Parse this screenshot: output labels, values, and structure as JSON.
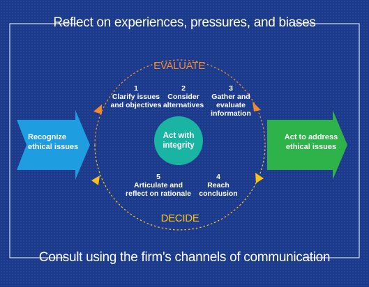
{
  "top_banner": "Reflect on experiences, pressures, and biases",
  "bottom_banner": "Consult using the firm's channels of communication",
  "cycle": {
    "evaluate_label": "EVALUATE",
    "decide_label": "DECIDE",
    "center": "Act with\nintegrity",
    "steps": [
      {
        "num": "1",
        "text": "Clarify issues\nand objectives"
      },
      {
        "num": "2",
        "text": "Consider\nalternatives"
      },
      {
        "num": "3",
        "text": "Gather and\nevaluate\ninformation"
      },
      {
        "num": "4",
        "text": "Reach\nconclusion"
      },
      {
        "num": "5",
        "text": "Articulate and\nreflect on rationale"
      }
    ]
  },
  "left_arrow": {
    "text": "Recognize\nethical issues",
    "color": "#1e9ee0"
  },
  "right_arrow": {
    "text": "Act to address\nethical issues",
    "color": "#2eb24a"
  },
  "colors": {
    "background": "#1b3a8c",
    "frame": "#ffffff",
    "evaluate": "#f08a2c",
    "decide": "#f7c11a",
    "center": "#1ab5a2"
  }
}
